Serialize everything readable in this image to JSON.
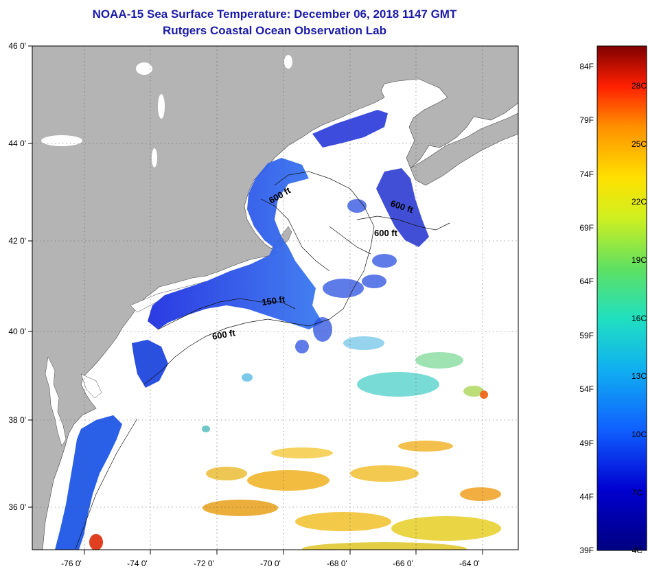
{
  "title_line1": "NOAA-15 Sea Surface Temperature:  December 06, 2018 1147 GMT",
  "title_line2": "Rutgers Coastal Ocean Observation Lab",
  "latitude_labels": [
    "46 0'",
    "44 0'",
    "42 0'",
    "40 0'",
    "38 0'",
    "36 0'"
  ],
  "longitude_labels": [
    "-76 0'",
    "-74 0'",
    "-72 0'",
    "-70 0'",
    "-68 0'",
    "-66 0'",
    "-64 0'"
  ],
  "contour_labels": [
    {
      "text": "600 ft",
      "at": "Gulf of Maine west"
    },
    {
      "text": "600 ft",
      "at": "Gulf of Maine east"
    },
    {
      "text": "600 ft",
      "at": "Georges Bank north"
    },
    {
      "text": "150 ft",
      "at": "Southern New England shelf"
    },
    {
      "text": "600 ft",
      "at": "Shelf break south of Long Island"
    }
  ],
  "colorbar": {
    "fahrenheit_labels": [
      "84F",
      "79F",
      "74F",
      "69F",
      "64F",
      "59F",
      "54F",
      "49F",
      "44F",
      "39F"
    ],
    "celsius_labels": [
      "28C",
      "25C",
      "22C",
      "19C",
      "16C",
      "13C",
      "10C",
      "7C",
      "4C"
    ]
  },
  "colors": {
    "title": "#1a1aa8",
    "land": "#b4b4b4",
    "no_data": "#ffffff",
    "cold_water": "#1f3fd8",
    "warm_water": "#f0b020"
  }
}
